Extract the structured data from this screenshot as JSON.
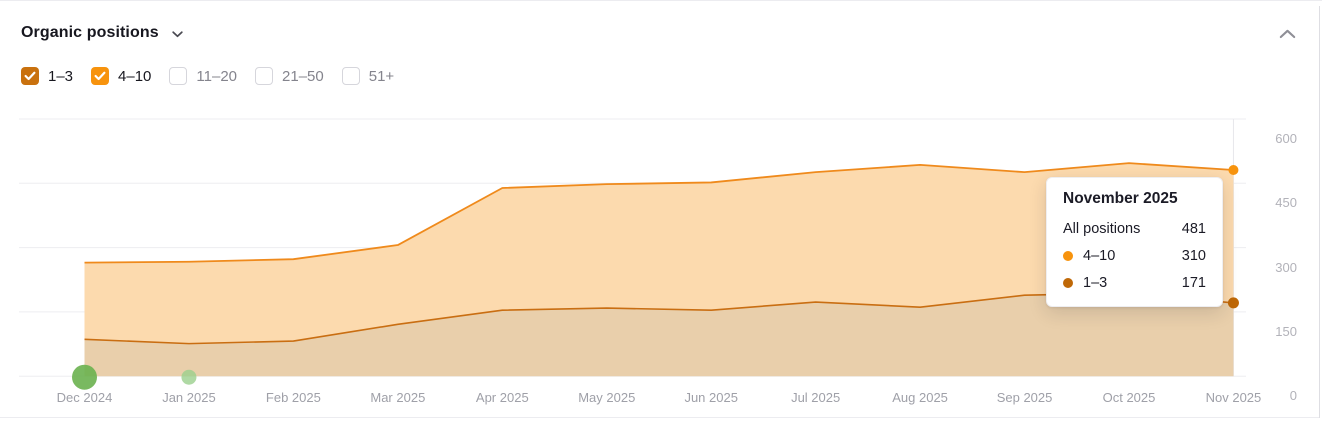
{
  "header": {
    "title": "Organic positions"
  },
  "filters": {
    "items": [
      {
        "label": "1–3",
        "checked": true,
        "color": "#c9710e"
      },
      {
        "label": "4–10",
        "checked": true,
        "color": "#f7930d"
      },
      {
        "label": "11–20",
        "checked": false,
        "color": null
      },
      {
        "label": "21–50",
        "checked": false,
        "color": null
      },
      {
        "label": "51+",
        "checked": false,
        "color": null
      }
    ]
  },
  "chart_data": {
    "type": "area",
    "stacked": true,
    "title": "Organic positions",
    "x_labels": [
      "Dec 2024",
      "Jan 2025",
      "Feb 2025",
      "Mar 2025",
      "Apr 2025",
      "May 2025",
      "Jun 2025",
      "Jul 2025",
      "Aug 2025",
      "Sep 2025",
      "Oct 2025",
      "Nov 2025"
    ],
    "y_ticks": [
      0,
      150,
      300,
      450,
      600
    ],
    "ylim": [
      0,
      600
    ],
    "y_axis_side": "right",
    "grid": "horizontal",
    "series": [
      {
        "name": "1–3",
        "values": [
          86,
          76,
          82,
          121,
          154,
          159,
          154,
          173,
          161,
          189,
          194,
          171
        ],
        "line_color": "#c96e12",
        "fill_color": "#e9cfab",
        "dot_color": "#bf6807"
      },
      {
        "name": "4–10",
        "values": [
          179,
          191,
          191,
          185,
          285,
          289,
          298,
          303,
          332,
          287,
          303,
          310
        ],
        "line_color": "#ef8a1c",
        "fill_color": "#fcdaae",
        "dot_color": "#f7930d"
      }
    ],
    "all_positions_total": [
      265,
      267,
      273,
      306,
      439,
      448,
      452,
      476,
      493,
      476,
      497,
      481
    ],
    "end_markers_month": "Nov 2025",
    "annotations": [
      {
        "x_label": "Dec 2024",
        "size": "large",
        "color": "#6ab14f"
      },
      {
        "x_label": "Jan 2025",
        "size": "small",
        "color": "#9bd08d"
      }
    ]
  },
  "tooltip": {
    "title": "November 2025",
    "rows": [
      {
        "label": "All positions",
        "value": "481",
        "dot_color": null
      },
      {
        "label": "4–10",
        "value": "310",
        "dot_color": "#f7930d"
      },
      {
        "label": "1–3",
        "value": "171",
        "dot_color": "#bf6807"
      }
    ]
  }
}
